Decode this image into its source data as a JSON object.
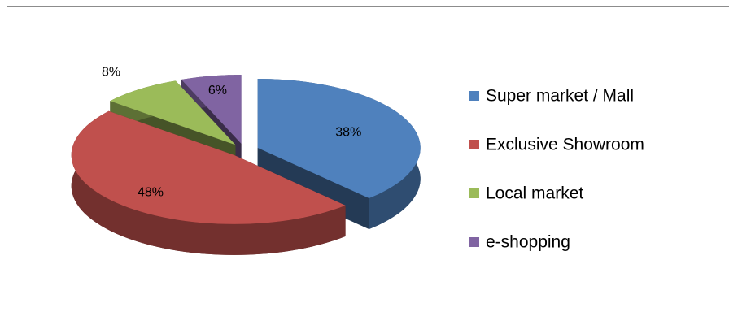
{
  "chart_data": {
    "type": "pie3d",
    "categories": [
      "Super market / Mall",
      "Exclusive Showroom",
      "Local market",
      "e-shopping"
    ],
    "values": [
      38,
      48,
      8,
      6
    ],
    "value_labels": [
      "38%",
      "48%",
      "8%",
      "6%"
    ],
    "colors": [
      "#4f81bd",
      "#c0504d",
      "#9bbb59",
      "#8064a2"
    ],
    "legend": "right"
  }
}
